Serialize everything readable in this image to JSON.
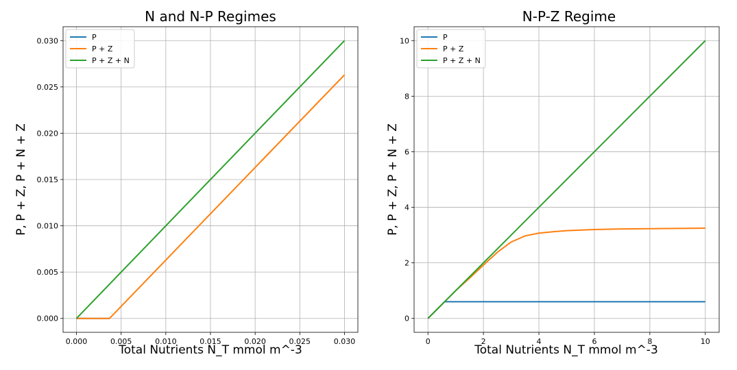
{
  "chart_data": [
    {
      "type": "line",
      "title": "N and N-P Regimes",
      "xlabel": "Total Nutrients N_T mmol m^-3",
      "ylabel": "P, P + Z, P + N + Z",
      "xlim": [
        -0.0015,
        0.0315
      ],
      "ylim": [
        -0.0015,
        0.0315
      ],
      "xticks": [
        0.0,
        0.005,
        0.01,
        0.015,
        0.02,
        0.025,
        0.03
      ],
      "xtick_labels": [
        "0.000",
        "0.005",
        "0.010",
        "0.015",
        "0.020",
        "0.025",
        "0.030"
      ],
      "yticks": [
        0.0,
        0.005,
        0.01,
        0.015,
        0.02,
        0.025,
        0.03
      ],
      "ytick_labels": [
        "0.000",
        "0.005",
        "0.010",
        "0.015",
        "0.020",
        "0.025",
        "0.030"
      ],
      "grid": true,
      "legend_position": "top-left",
      "series": [
        {
          "name": "P",
          "color": "#1f77b4",
          "x": [
            0.0,
            0.0037
          ],
          "y": [
            0.0,
            0.0
          ]
        },
        {
          "name": "P + Z",
          "color": "#ff7f0e",
          "x": [
            0.0,
            0.0037,
            0.03
          ],
          "y": [
            0.0,
            0.0,
            0.0263
          ]
        },
        {
          "name": "P + Z + N",
          "color": "#2ca02c",
          "x": [
            0.0,
            0.03
          ],
          "y": [
            0.0,
            0.03
          ]
        }
      ]
    },
    {
      "type": "line",
      "title": "N-P-Z Regime",
      "xlabel": "Total Nutrients N_T mmol m^-3",
      "ylabel": "P,  P + Z,  P + N + Z",
      "xlim": [
        -0.5,
        10.5
      ],
      "ylim": [
        -0.5,
        10.5
      ],
      "xticks": [
        0,
        2,
        4,
        6,
        8,
        10
      ],
      "xtick_labels": [
        "0",
        "2",
        "4",
        "6",
        "8",
        "10"
      ],
      "yticks": [
        0,
        2,
        4,
        6,
        8,
        10
      ],
      "ytick_labels": [
        "0",
        "2",
        "4",
        "6",
        "8",
        "10"
      ],
      "grid": true,
      "legend_position": "top-left",
      "series": [
        {
          "name": "P",
          "color": "#1f77b4",
          "x": [
            0.0,
            0.6,
            1,
            2,
            3,
            4,
            5,
            6,
            7,
            8,
            9,
            10
          ],
          "y": [
            0.0,
            0.6,
            0.6,
            0.6,
            0.6,
            0.6,
            0.6,
            0.6,
            0.6,
            0.6,
            0.6,
            0.6
          ]
        },
        {
          "name": "P + Z",
          "color": "#ff7f0e",
          "x": [
            0.0,
            0.6,
            1.0,
            1.5,
            2.0,
            2.5,
            3.0,
            3.5,
            4.0,
            4.5,
            5.0,
            6.0,
            7.0,
            8.0,
            9.0,
            10.0
          ],
          "y": [
            0.0,
            0.6,
            1.0,
            1.45,
            1.92,
            2.38,
            2.75,
            2.97,
            3.07,
            3.12,
            3.16,
            3.2,
            3.22,
            3.23,
            3.24,
            3.25
          ]
        },
        {
          "name": "P + Z + N",
          "color": "#2ca02c",
          "x": [
            0.0,
            10.0
          ],
          "y": [
            0.0,
            10.0
          ]
        }
      ]
    }
  ]
}
